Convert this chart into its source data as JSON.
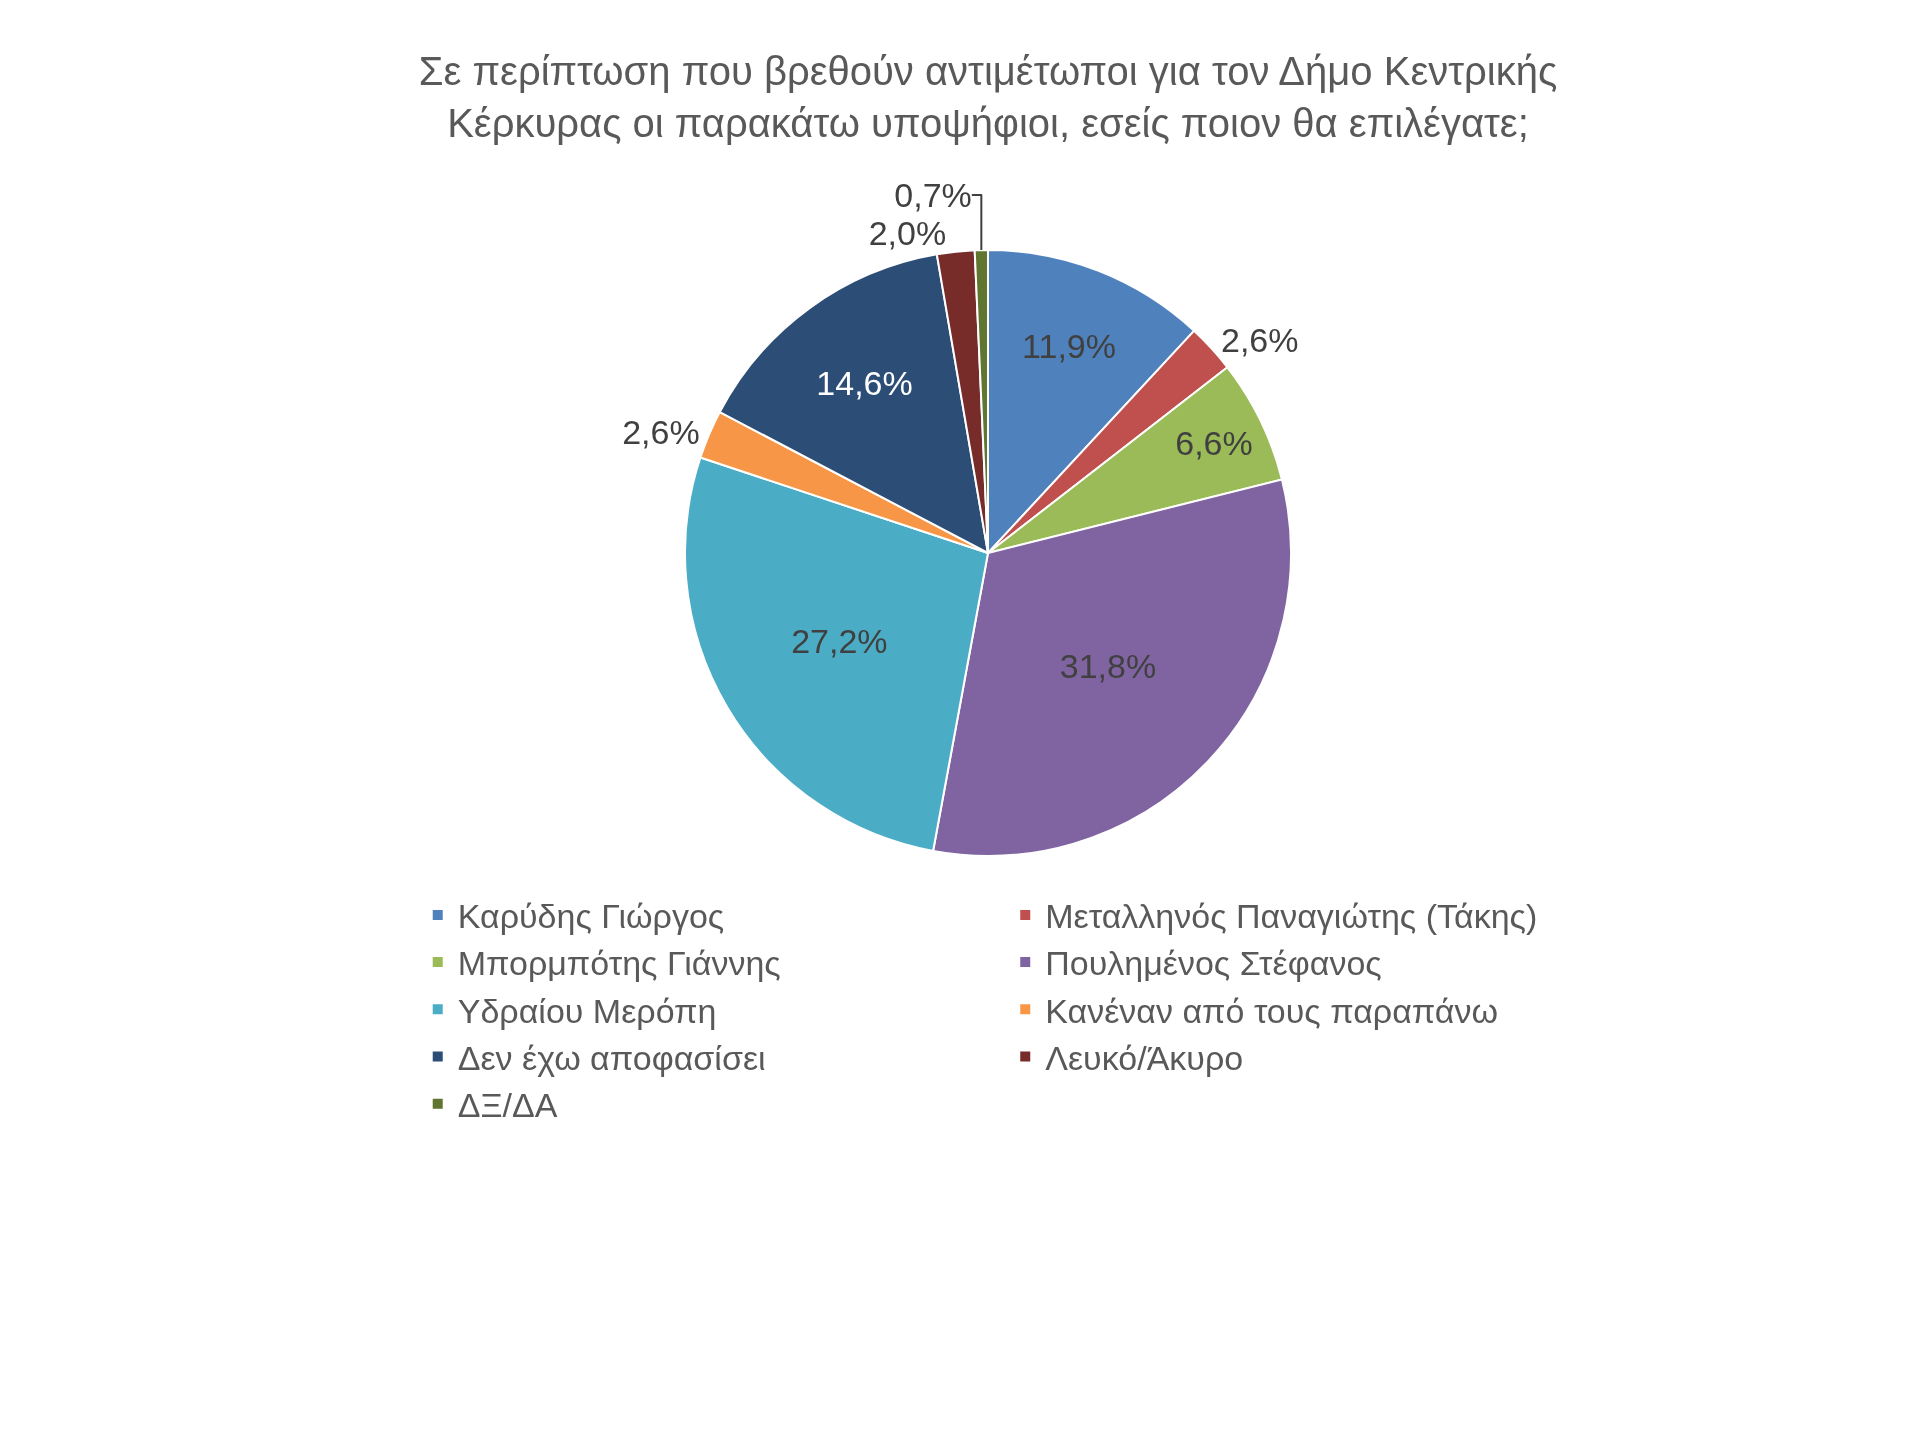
{
  "chart_data": {
    "type": "pie",
    "title": "Σε περίπτωση που βρεθούν αντιμέτωποι για τον Δήμο Κεντρικής Κέρκυρας οι παρακάτω υποψήφιοι, εσείς ποιον θα επιλέγατε;",
    "categories": [
      "Καρύδης Γιώργος",
      "Μεταλληνός Παναγιώτης (Τάκης)",
      "Μπορμπότης Γιάννης",
      "Πουλημένος Στέφανος",
      "Υδραίου Μερόπη",
      "Κανέναν από τους παραπάνω",
      "Δεν έχω αποφασίσει",
      "Λευκό/Άκυρο",
      "ΔΞ/ΔΑ"
    ],
    "values": [
      11.9,
      2.6,
      6.6,
      31.8,
      27.2,
      2.6,
      14.6,
      2.0,
      0.7
    ],
    "value_labels": [
      "11,9%",
      "2,6%",
      "6,6%",
      "31,8%",
      "27,2%",
      "2,6%",
      "14,6%",
      "2,0%",
      "0,7%"
    ],
    "colors": [
      "#4f81bd",
      "#c0504d",
      "#9bbb59",
      "#8064a2",
      "#4bacc6",
      "#f79646",
      "#2c4d75",
      "#772c2a",
      "#5f7530"
    ],
    "legend": "bottom"
  }
}
